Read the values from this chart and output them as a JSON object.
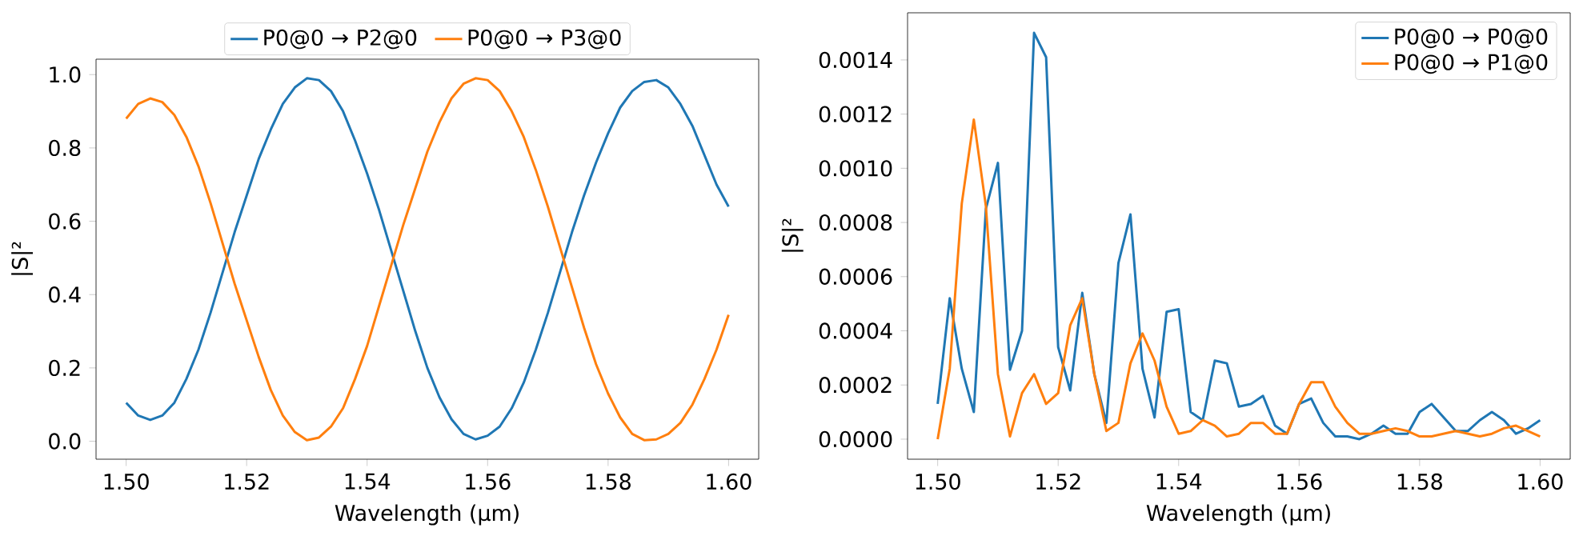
{
  "chart_data": [
    {
      "type": "line",
      "xlabel": "Wavelength (µm)",
      "ylabel": "|S|²",
      "legend": "top",
      "x": [
        1.5,
        1.502,
        1.504,
        1.506,
        1.508,
        1.51,
        1.512,
        1.514,
        1.516,
        1.518,
        1.52,
        1.522,
        1.524,
        1.526,
        1.528,
        1.53,
        1.532,
        1.534,
        1.536,
        1.538,
        1.54,
        1.542,
        1.544,
        1.546,
        1.548,
        1.55,
        1.552,
        1.554,
        1.556,
        1.558,
        1.56,
        1.562,
        1.564,
        1.566,
        1.568,
        1.57,
        1.572,
        1.574,
        1.576,
        1.578,
        1.58,
        1.582,
        1.584,
        1.586,
        1.588,
        1.59,
        1.592,
        1.594,
        1.596,
        1.598,
        1.6
      ],
      "series": [
        {
          "name": "P0@0 → P2@0",
          "color": "#1f77b4",
          "values": [
            0.105,
            0.07,
            0.058,
            0.07,
            0.105,
            0.17,
            0.25,
            0.35,
            0.46,
            0.57,
            0.67,
            0.77,
            0.85,
            0.92,
            0.965,
            0.99,
            0.985,
            0.955,
            0.9,
            0.82,
            0.73,
            0.63,
            0.52,
            0.41,
            0.3,
            0.2,
            0.12,
            0.06,
            0.02,
            0.005,
            0.015,
            0.04,
            0.09,
            0.16,
            0.25,
            0.35,
            0.46,
            0.57,
            0.67,
            0.76,
            0.84,
            0.91,
            0.955,
            0.98,
            0.985,
            0.965,
            0.92,
            0.86,
            0.78,
            0.7,
            0.64
          ]
        },
        {
          "name": "P0@0 → P3@0",
          "color": "#ff7f0e",
          "values": [
            0.88,
            0.92,
            0.935,
            0.925,
            0.89,
            0.83,
            0.75,
            0.65,
            0.54,
            0.43,
            0.33,
            0.23,
            0.14,
            0.07,
            0.025,
            0.003,
            0.01,
            0.04,
            0.09,
            0.17,
            0.26,
            0.37,
            0.48,
            0.59,
            0.69,
            0.79,
            0.87,
            0.935,
            0.975,
            0.99,
            0.985,
            0.955,
            0.9,
            0.83,
            0.74,
            0.64,
            0.53,
            0.42,
            0.31,
            0.21,
            0.13,
            0.065,
            0.02,
            0.003,
            0.005,
            0.02,
            0.05,
            0.1,
            0.17,
            0.25,
            0.345
          ]
        }
      ],
      "xlim": [
        1.495,
        1.605
      ],
      "ylim": [
        -0.049,
        1.042
      ],
      "xticks": [
        {
          "value": 1.5,
          "label": "1.50"
        },
        {
          "value": 1.52,
          "label": "1.52"
        },
        {
          "value": 1.54,
          "label": "1.54"
        },
        {
          "value": 1.56,
          "label": "1.56"
        },
        {
          "value": 1.58,
          "label": "1.58"
        },
        {
          "value": 1.6,
          "label": "1.60"
        }
      ],
      "yticks": [
        {
          "value": 0,
          "label": "0.0"
        },
        {
          "value": 0.2,
          "label": "0.2"
        },
        {
          "value": 0.4,
          "label": "0.4"
        },
        {
          "value": 0.6,
          "label": "0.6"
        },
        {
          "value": 0.8,
          "label": "0.8"
        },
        {
          "value": 1.0,
          "label": "1.0"
        }
      ]
    },
    {
      "type": "line",
      "xlabel": "Wavelength (µm)",
      "ylabel": "|S|²",
      "legend": "top right",
      "x": [
        1.5,
        1.502,
        1.504,
        1.506,
        1.508,
        1.51,
        1.512,
        1.514,
        1.516,
        1.518,
        1.52,
        1.522,
        1.524,
        1.526,
        1.528,
        1.53,
        1.532,
        1.534,
        1.536,
        1.538,
        1.54,
        1.542,
        1.544,
        1.546,
        1.548,
        1.55,
        1.552,
        1.554,
        1.556,
        1.558,
        1.56,
        1.562,
        1.564,
        1.566,
        1.568,
        1.57,
        1.572,
        1.574,
        1.576,
        1.578,
        1.58,
        1.582,
        1.584,
        1.586,
        1.588,
        1.59,
        1.592,
        1.594,
        1.596,
        1.598,
        1.6
      ],
      "series": [
        {
          "name": "P0@0 → P0@0",
          "color": "#1f77b4",
          "values": [
            0.00013,
            0.00052,
            0.00026,
            0.0001,
            0.00085,
            0.00102,
            0.000256,
            0.0004,
            0.0015,
            0.00141,
            0.00034,
            0.00018,
            0.00054,
            0.00024,
            6e-05,
            0.00065,
            0.00083,
            0.00026,
            8e-05,
            0.00047,
            0.00048,
            0.0001,
            7e-05,
            0.00029,
            0.00028,
            0.00012,
            0.00013,
            0.00016,
            5e-05,
            2e-05,
            0.00013,
            0.00015,
            6e-05,
            1e-05,
            1e-05,
            0.0,
            2e-05,
            5e-05,
            2e-05,
            2e-05,
            0.0001,
            0.00013,
            8e-05,
            3e-05,
            3e-05,
            7e-05,
            0.0001,
            7e-05,
            2e-05,
            4e-05,
            7e-05
          ]
        },
        {
          "name": "P0@0 → P1@0",
          "color": "#ff7f0e",
          "values": [
            0.0,
            0.00026,
            0.00087,
            0.00118,
            0.00086,
            0.00024,
            1e-05,
            0.00017,
            0.00024,
            0.00013,
            0.00017,
            0.00042,
            0.00052,
            0.00024,
            3e-05,
            6e-05,
            0.00028,
            0.00039,
            0.00029,
            0.00012,
            2e-05,
            3e-05,
            7e-05,
            5e-05,
            1e-05,
            2e-05,
            6e-05,
            6e-05,
            2e-05,
            2e-05,
            0.00013,
            0.00021,
            0.00021,
            0.00012,
            6e-05,
            2e-05,
            2e-05,
            3e-05,
            4e-05,
            3e-05,
            1e-05,
            1e-05,
            2e-05,
            3e-05,
            2e-05,
            1e-05,
            2e-05,
            4e-05,
            5e-05,
            3e-05,
            1e-05
          ]
        }
      ],
      "xlim": [
        1.495,
        1.605
      ],
      "ylim": [
        -7.4e-05,
        0.001574
      ],
      "xticks": [
        {
          "value": 1.5,
          "label": "1.50"
        },
        {
          "value": 1.52,
          "label": "1.52"
        },
        {
          "value": 1.54,
          "label": "1.54"
        },
        {
          "value": 1.56,
          "label": "1.56"
        },
        {
          "value": 1.58,
          "label": "1.58"
        },
        {
          "value": 1.6,
          "label": "1.60"
        }
      ],
      "yticks": [
        {
          "value": 0,
          "label": "0.0000"
        },
        {
          "value": 0.0002,
          "label": "0.0002"
        },
        {
          "value": 0.0004,
          "label": "0.0004"
        },
        {
          "value": 0.0006,
          "label": "0.0006"
        },
        {
          "value": 0.0008,
          "label": "0.0008"
        },
        {
          "value": 0.001,
          "label": "0.0010"
        },
        {
          "value": 0.0012,
          "label": "0.0012"
        },
        {
          "value": 0.0014,
          "label": "0.0014"
        }
      ]
    }
  ]
}
